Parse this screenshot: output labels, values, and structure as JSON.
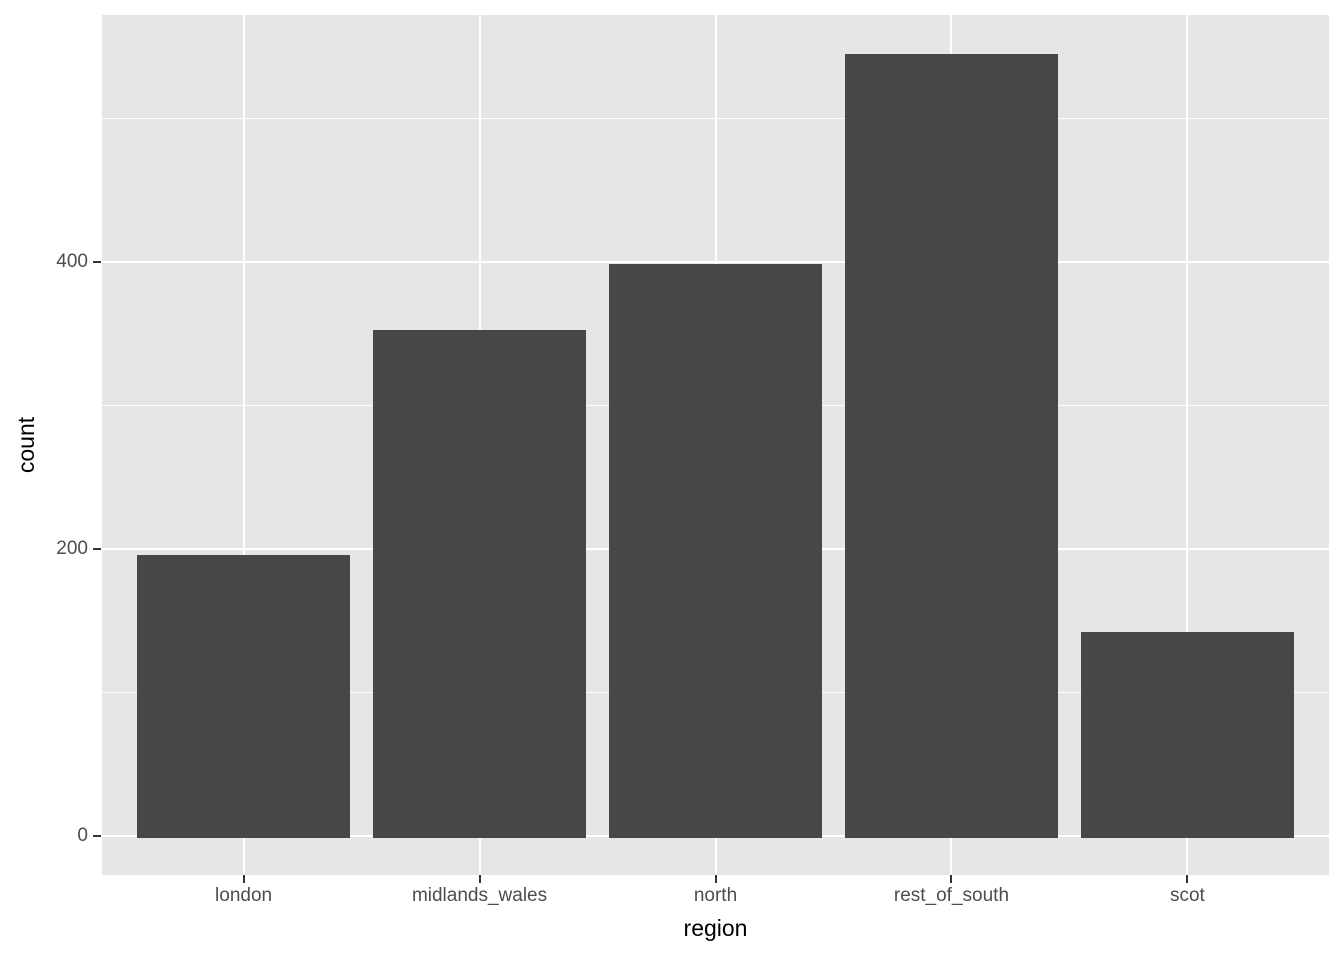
{
  "chart_data": {
    "type": "bar",
    "title": "",
    "xlabel": "region",
    "ylabel": "count",
    "categories": [
      "london",
      "midlands_wales",
      "north",
      "rest_of_south",
      "scot"
    ],
    "values": [
      196,
      353,
      399,
      545,
      142
    ],
    "y_ticks": [
      0,
      200,
      400
    ],
    "y_tick_labels": [
      "0",
      "200",
      "400"
    ],
    "y_minor_gridlines": [
      100,
      300,
      500
    ],
    "ylim": [
      -27.25,
      572.25
    ],
    "grid": "major-and-minor-horizontal-plus-major-vertical",
    "legend": false,
    "colors": {
      "figure_background": "#FFFFFF",
      "panel_background": "#E6E6E6",
      "gridline": "#FFFFFF",
      "bar_fill": "#474747",
      "tick_mark": "#333333",
      "tick_label": "#4D4D4D",
      "axis_title": "#000000"
    }
  }
}
